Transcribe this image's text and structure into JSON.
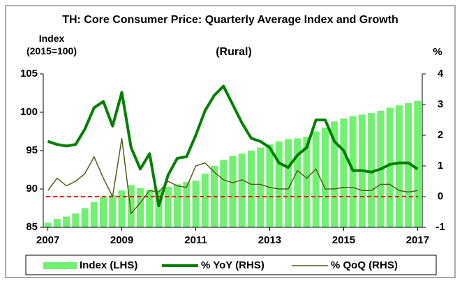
{
  "chart_data": {
    "type": "combo",
    "title": "TH: Core Consumer Price: Quarterly Average Index and Growth",
    "subtitle": "(Rural)",
    "y_label": "Index (2015=100)",
    "y2_label": "%",
    "categories": [
      "2007",
      null,
      null,
      null,
      null,
      null,
      null,
      null,
      "2009",
      null,
      null,
      null,
      null,
      null,
      null,
      null,
      "2011",
      null,
      null,
      null,
      null,
      null,
      null,
      null,
      "2013",
      null,
      null,
      null,
      null,
      null,
      null,
      null,
      "2015",
      null,
      null,
      null,
      null,
      null,
      null,
      null,
      "2017"
    ],
    "ylim": [
      85,
      105
    ],
    "yticks": [
      85,
      90,
      95,
      100,
      105
    ],
    "y2lim": [
      -1,
      4
    ],
    "y2ticks": [
      -1,
      0,
      1,
      2,
      3,
      4
    ],
    "reference_line": {
      "axis": "y2",
      "value": 0,
      "color": "#ff0000"
    },
    "series": [
      {
        "name": "Index (LHS)",
        "type": "bar",
        "color": "#72f072",
        "values": [
          85.6,
          86.1,
          86.4,
          86.8,
          87.5,
          88.3,
          89.0,
          89.2,
          89.8,
          90.5,
          90.1,
          89.9,
          89.9,
          90.3,
          90.6,
          90.9,
          91.1,
          92.0,
          93.0,
          93.8,
          94.3,
          94.6,
          95.0,
          95.4,
          95.8,
          96.2,
          96.5,
          96.6,
          96.8,
          97.5,
          98.0,
          98.8,
          99.2,
          99.5,
          99.7,
          99.9,
          100.2,
          100.6,
          100.9,
          101.2,
          101.5
        ]
      },
      {
        "name": "% YoY (RHS)",
        "type": "line",
        "axis": "y2",
        "color": "#008000",
        "width": 4,
        "values": [
          1.8,
          1.7,
          1.65,
          1.7,
          2.2,
          2.9,
          3.1,
          2.3,
          3.4,
          1.6,
          0.9,
          1.4,
          -0.3,
          0.7,
          1.25,
          1.3,
          2.0,
          2.8,
          3.3,
          3.6,
          3.0,
          2.4,
          1.9,
          1.8,
          1.6,
          1.1,
          0.95,
          1.35,
          1.6,
          2.5,
          2.5,
          1.8,
          1.5,
          0.85,
          0.85,
          0.8,
          0.9,
          1.05,
          1.1,
          1.1,
          0.9
        ]
      },
      {
        "name": "% QoQ (RHS)",
        "type": "line",
        "axis": "y2",
        "color": "#4f5e1c",
        "width": 1.5,
        "values": [
          0.2,
          0.6,
          0.35,
          0.5,
          0.75,
          1.3,
          0.6,
          0.0,
          1.9,
          -0.55,
          -0.2,
          0.2,
          0.15,
          0.5,
          0.35,
          0.3,
          1.0,
          1.1,
          0.8,
          0.55,
          0.45,
          0.55,
          0.4,
          0.4,
          0.3,
          0.25,
          0.25,
          0.85,
          0.6,
          0.9,
          0.25,
          0.25,
          0.3,
          0.3,
          0.2,
          0.2,
          0.4,
          0.4,
          0.2,
          0.15,
          0.2
        ]
      }
    ]
  }
}
